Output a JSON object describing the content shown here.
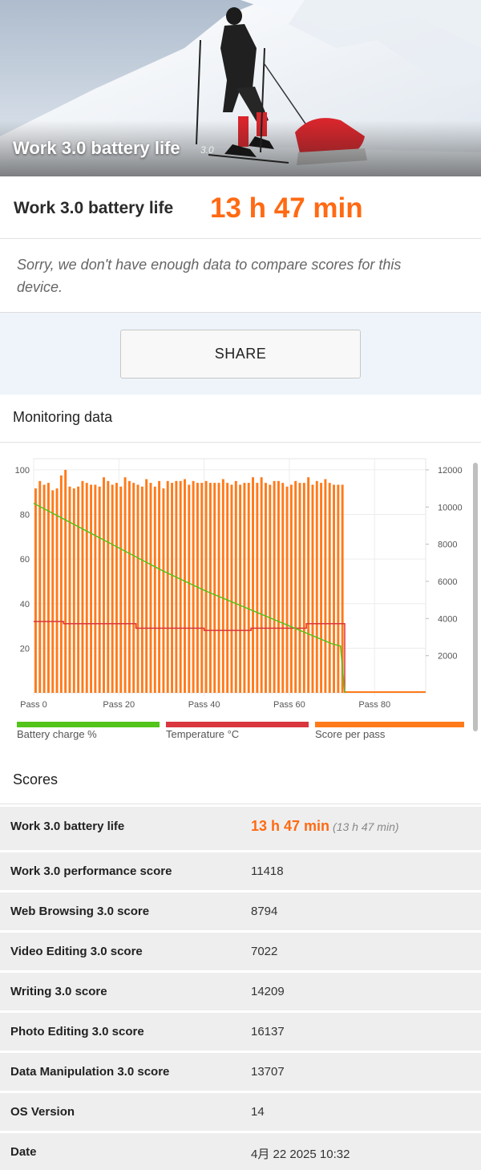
{
  "hero": {
    "title": "Work 3.0 battery life",
    "version": "3.0"
  },
  "result": {
    "label": "Work 3.0 battery life",
    "value": "13 h 47 min",
    "note": "Sorry, we don't have enough data to compare scores for this device."
  },
  "share_label": "SHARE",
  "monitoring": {
    "title": "Monitoring data"
  },
  "legend": [
    {
      "label": "Battery charge %",
      "color": "#52c41a"
    },
    {
      "label": "Temperature °C",
      "color": "#d9363e"
    },
    {
      "label": "Score per pass",
      "color": "#ff7a1a"
    }
  ],
  "chart_data": {
    "type": "bar",
    "left_axis": {
      "ticks": [
        "20",
        "40",
        "60",
        "80",
        "100"
      ],
      "range": [
        0,
        105
      ]
    },
    "right_axis": {
      "ticks": [
        "2000",
        "4000",
        "6000",
        "8000",
        "10000",
        "12000"
      ],
      "range": [
        0,
        12600
      ]
    },
    "x_ticks": [
      "Pass 0",
      "Pass 20",
      "Pass 40",
      "Pass 60",
      "Pass 80"
    ],
    "grid": true,
    "score_per_pass": [
      11000,
      11400,
      11200,
      11300,
      10900,
      11000,
      11700,
      12000,
      11100,
      11000,
      11100,
      11400,
      11300,
      11200,
      11200,
      11100,
      11600,
      11400,
      11200,
      11300,
      11100,
      11600,
      11400,
      11300,
      11200,
      11100,
      11500,
      11300,
      11100,
      11400,
      11000,
      11400,
      11300,
      11400,
      11400,
      11500,
      11200,
      11400,
      11300,
      11300,
      11400,
      11300,
      11300,
      11300,
      11500,
      11300,
      11200,
      11400,
      11200,
      11300,
      11300,
      11600,
      11300,
      11600,
      11300,
      11200,
      11400,
      11400,
      11300,
      11100,
      11200,
      11400,
      11300,
      11300,
      11600,
      11200,
      11400,
      11300,
      11500,
      11300,
      11200,
      11200,
      11200,
      11100,
      11300,
      11400,
      11300,
      11400,
      11300,
      11300,
      11300,
      11300,
      11400,
      11300,
      11200,
      11500,
      11300,
      11400,
      11300,
      11300,
      11200,
      11300,
      11200
    ],
    "score_end_pass": 73,
    "battery_percent": [
      [
        0,
        85
      ],
      [
        10,
        75
      ],
      [
        20,
        65
      ],
      [
        30,
        55
      ],
      [
        40,
        46
      ],
      [
        50,
        38
      ],
      [
        60,
        30
      ],
      [
        70,
        22
      ],
      [
        72,
        21
      ],
      [
        73,
        0
      ]
    ],
    "temperature_c": [
      [
        0,
        32
      ],
      [
        7,
        32
      ],
      [
        7,
        31
      ],
      [
        24,
        31
      ],
      [
        24,
        29
      ],
      [
        40,
        29
      ],
      [
        40,
        28
      ],
      [
        51,
        28
      ],
      [
        51,
        29
      ],
      [
        64,
        29
      ],
      [
        64,
        31
      ],
      [
        73,
        31
      ],
      [
        73,
        0
      ]
    ]
  },
  "scores_title": "Scores",
  "scores": [
    {
      "key": "Work 3.0 battery life",
      "value": "13 h 47 min",
      "sub": "(13 h 47 min)"
    },
    {
      "key": "Work 3.0 performance score",
      "value": "11418"
    },
    {
      "key": "Web Browsing 3.0 score",
      "value": "8794"
    },
    {
      "key": "Video Editing 3.0 score",
      "value": "7022"
    },
    {
      "key": "Writing 3.0 score",
      "value": "14209"
    },
    {
      "key": "Photo Editing 3.0 score",
      "value": "16137"
    },
    {
      "key": "Data Manipulation 3.0 score",
      "value": "13707"
    },
    {
      "key": "OS Version",
      "value": "14"
    },
    {
      "key": "Date",
      "value": "4月 22 2025 10:32"
    }
  ]
}
